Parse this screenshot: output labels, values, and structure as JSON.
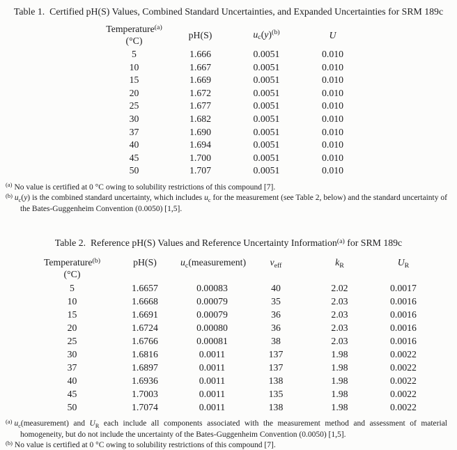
{
  "page": {
    "background": "#fcfcfb",
    "text_color": "#1d1d1f"
  },
  "table1": {
    "title_label": "Table 1.",
    "title_text": "Certified pH(S) Values, Combined Standard Uncertainties, and Expanded Uncertainties for SRM 189c",
    "headers": {
      "temperature": [
        {
          "t": "Temperature"
        },
        {
          "s": "sup",
          "t": "(a)"
        }
      ],
      "temperature_unit": "(°C)",
      "ph": "pH(S)",
      "uc": [
        {
          "s": "i",
          "t": "u"
        },
        {
          "s": "sub",
          "t": "c"
        },
        {
          "t": "("
        },
        {
          "s": "i",
          "t": "y"
        },
        {
          "t": ")"
        },
        {
          "s": "sup",
          "t": "(b)"
        }
      ],
      "expanded_u": [
        {
          "s": "i",
          "t": "U"
        }
      ]
    },
    "rows": [
      [
        "5",
        "1.666",
        "0.0051",
        "0.010"
      ],
      [
        "10",
        "1.667",
        "0.0051",
        "0.010"
      ],
      [
        "15",
        "1.669",
        "0.0051",
        "0.010"
      ],
      [
        "20",
        "1.672",
        "0.0051",
        "0.010"
      ],
      [
        "25",
        "1.677",
        "0.0051",
        "0.010"
      ],
      [
        "30",
        "1.682",
        "0.0051",
        "0.010"
      ],
      [
        "37",
        "1.690",
        "0.0051",
        "0.010"
      ],
      [
        "40",
        "1.694",
        "0.0051",
        "0.010"
      ],
      [
        "45",
        "1.700",
        "0.0051",
        "0.010"
      ],
      [
        "50",
        "1.707",
        "0.0051",
        "0.010"
      ]
    ],
    "footnote_a_marker": "(a)",
    "footnote_a": [
      {
        "t": "No value is certified at 0 °C owing to solubility restrictions of this compound [7]."
      }
    ],
    "footnote_b_marker": "(b)",
    "footnote_b": [
      {
        "s": "i",
        "t": "u"
      },
      {
        "s": "sub",
        "t": "c"
      },
      {
        "t": "("
      },
      {
        "s": "i",
        "t": "y"
      },
      {
        "t": ") is the combined standard uncertainty, which includes "
      },
      {
        "s": "i",
        "t": "u"
      },
      {
        "s": "sub",
        "t": "c"
      },
      {
        "t": " for the measurement (see Table 2, below) and the standard uncertainty of the Bates-Guggenheim Convention (0.0050) [1,5]."
      }
    ]
  },
  "table2": {
    "title_label": "Table 2.",
    "title_parts": [
      {
        "t": "Reference pH(S) Values and Reference Uncertainty Information"
      },
      {
        "s": "sup",
        "t": "(a)"
      },
      {
        "t": " for SRM 189c"
      }
    ],
    "headers": {
      "temperature": [
        {
          "t": "Temperature"
        },
        {
          "s": "sup",
          "t": "(b)"
        }
      ],
      "temperature_unit": "(°C)",
      "ph": "pH(S)",
      "uc": [
        {
          "s": "i",
          "t": "u"
        },
        {
          "s": "sub",
          "t": "c"
        },
        {
          "t": "(measurement)"
        }
      ],
      "veff": [
        {
          "s": "i",
          "t": "v"
        },
        {
          "s": "sub",
          "t": "eff"
        }
      ],
      "kr": [
        {
          "s": "i",
          "t": "k"
        },
        {
          "s": "sub",
          "t": "R"
        }
      ],
      "ur": [
        {
          "s": "i",
          "t": "U"
        },
        {
          "s": "sub",
          "t": "R"
        }
      ]
    },
    "rows": [
      [
        "5",
        "1.6657",
        "0.00083",
        "40",
        "2.02",
        "0.0017"
      ],
      [
        "10",
        "1.6668",
        "0.00079",
        "35",
        "2.03",
        "0.0016"
      ],
      [
        "15",
        "1.6691",
        "0.00079",
        "36",
        "2.03",
        "0.0016"
      ],
      [
        "20",
        "1.6724",
        "0.00080",
        "36",
        "2.03",
        "0.0016"
      ],
      [
        "25",
        "1.6766",
        "0.00081",
        "38",
        "2.03",
        "0.0016"
      ],
      [
        "30",
        "1.6816",
        "0.0011",
        "137",
        "1.98",
        "0.0022"
      ],
      [
        "37",
        "1.6897",
        "0.0011",
        "137",
        "1.98",
        "0.0022"
      ],
      [
        "40",
        "1.6936",
        "0.0011",
        "138",
        "1.98",
        "0.0022"
      ],
      [
        "45",
        "1.7003",
        "0.0011",
        "135",
        "1.98",
        "0.0022"
      ],
      [
        "50",
        "1.7074",
        "0.0011",
        "138",
        "1.98",
        "0.0022"
      ]
    ],
    "footnote_a_marker": "(a)",
    "footnote_a": [
      {
        "s": "i",
        "t": "u"
      },
      {
        "s": "sub",
        "t": "c"
      },
      {
        "t": "(measurement) and "
      },
      {
        "s": "i",
        "t": "U"
      },
      {
        "s": "sub",
        "t": "R"
      },
      {
        "t": " each include all components associated with the measurement method and assessment of material homogeneity, but do not include the uncertainty of the Bates-Guggenheim Convention (0.0050) [1,5]."
      }
    ],
    "footnote_b_marker": "(b)",
    "footnote_b": [
      {
        "t": "No value is certified at 0 °C owing to solubility restrictions of this compound [7]."
      }
    ]
  }
}
